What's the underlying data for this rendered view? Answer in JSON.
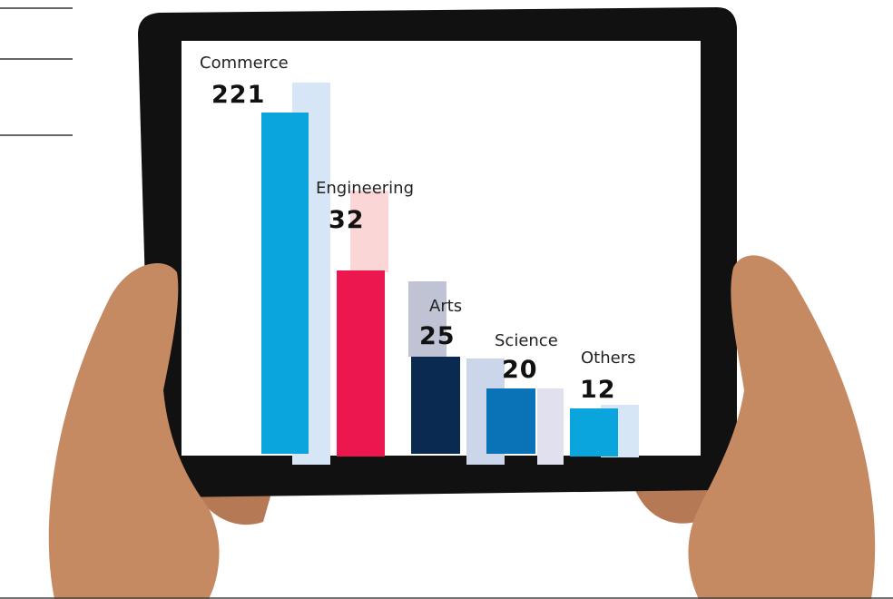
{
  "items": [
    {
      "label": "Commerce",
      "value": "221"
    },
    {
      "label": "Engineering",
      "value": "32"
    },
    {
      "label": "Arts",
      "value": "25"
    },
    {
      "label": "Science",
      "value": "20"
    },
    {
      "label": "Others",
      "value": "12"
    }
  ]
}
